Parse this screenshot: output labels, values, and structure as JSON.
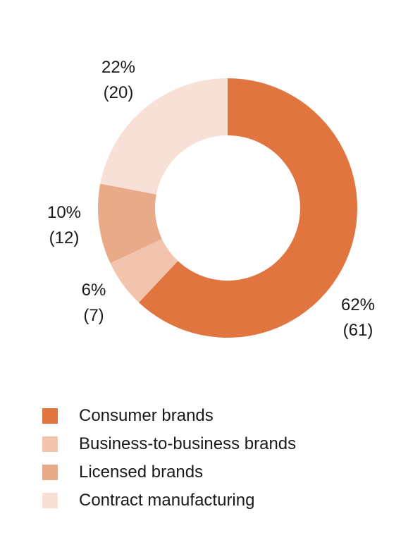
{
  "chart_data": {
    "type": "pie",
    "donut": true,
    "slices": [
      {
        "label": "Consumer brands",
        "value": 62,
        "percent_label": "62%",
        "count_label": "(61)",
        "color": "#e07540"
      },
      {
        "label": "Business-to-business brands",
        "value": 6,
        "percent_label": "6%",
        "count_label": "(7)",
        "color": "#f2c4ae"
      },
      {
        "label": "Licensed brands",
        "value": 10,
        "percent_label": "10%",
        "count_label": "(12)",
        "color": "#e8aa88"
      },
      {
        "label": "Contract manufacturing",
        "value": 22,
        "percent_label": "22%",
        "count_label": "(20)",
        "color": "#f7e0d6"
      }
    ],
    "legend_position": "bottom-left"
  }
}
